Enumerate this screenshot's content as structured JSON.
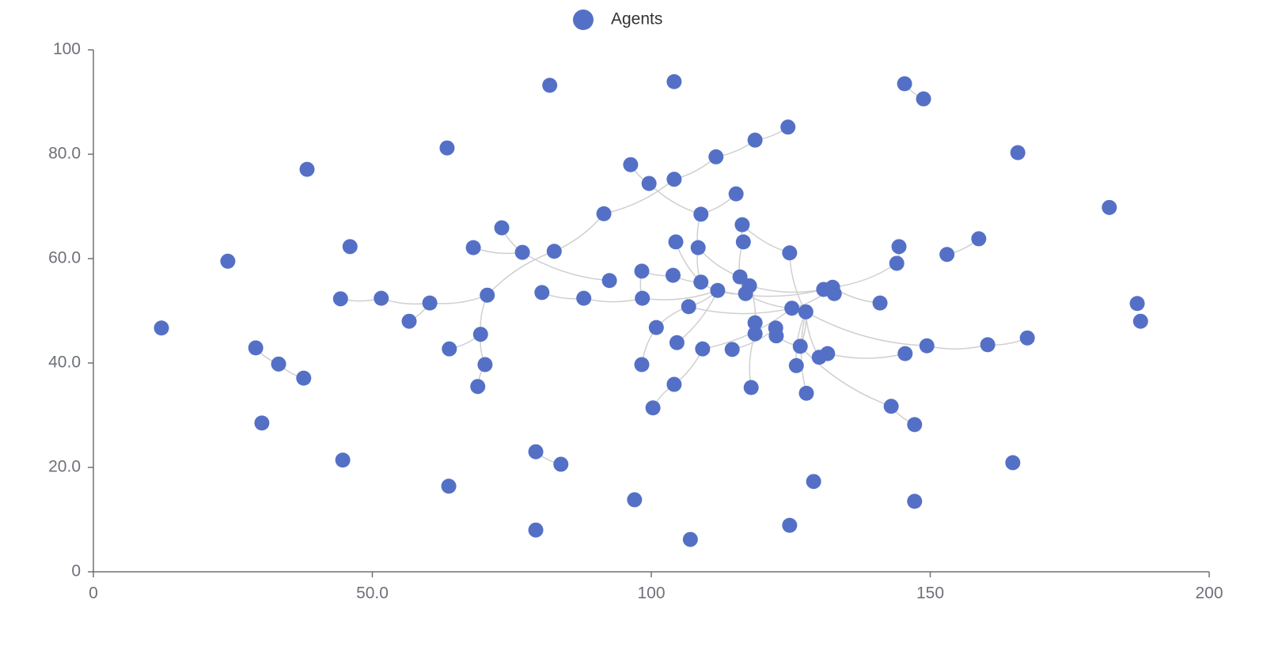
{
  "chart_data": {
    "type": "scatter",
    "series": [
      {
        "name": "Agents",
        "color": "#5470c6",
        "x": [
          12.2,
          24.1,
          29.1,
          33.2,
          37.7,
          30.2,
          38.3,
          46.0,
          44.3,
          51.6,
          44.7,
          56.6,
          60.3,
          63.4,
          63.8,
          63.7,
          68.1,
          70.6,
          69.4,
          70.2,
          68.9,
          73.2,
          76.9,
          82.6,
          81.8,
          80.4,
          79.3,
          83.8,
          79.3,
          87.9,
          91.5,
          92.5,
          96.3,
          99.6,
          98.3,
          98.4,
          98.3,
          100.9,
          100.3,
          97.0,
          104.1,
          104.1,
          104.4,
          103.9,
          106.7,
          104.6,
          104.1,
          107.0,
          108.9,
          108.4,
          108.9,
          109.2,
          111.6,
          111.9,
          115.2,
          116.3,
          116.5,
          115.9,
          117.6,
          116.9,
          114.5,
          118.6,
          118.6,
          118.6,
          117.9,
          124.5,
          124.8,
          125.2,
          122.3,
          122.4,
          126.7,
          127.7,
          126.0,
          127.8,
          124.8,
          129.1,
          130.9,
          132.5,
          132.8,
          130.1,
          131.6,
          141.0,
          144.0,
          144.4,
          145.5,
          143.0,
          147.2,
          147.2,
          145.4,
          148.8,
          149.4,
          153.0,
          158.7,
          160.3,
          165.7,
          164.8,
          167.4,
          182.1,
          187.1,
          187.7
        ],
        "y": [
          46.7,
          59.5,
          42.9,
          39.8,
          37.1,
          28.5,
          77.1,
          62.3,
          52.3,
          52.4,
          21.4,
          48.0,
          51.5,
          81.2,
          42.7,
          16.4,
          62.1,
          53.0,
          45.5,
          39.7,
          35.5,
          65.9,
          61.2,
          61.4,
          93.2,
          53.5,
          23.0,
          20.6,
          8.0,
          52.4,
          68.6,
          55.8,
          78.0,
          74.4,
          57.6,
          52.4,
          39.7,
          46.8,
          31.4,
          13.8,
          93.9,
          75.2,
          63.2,
          56.8,
          50.8,
          43.9,
          35.9,
          6.2,
          68.5,
          62.1,
          55.5,
          42.7,
          79.5,
          53.9,
          72.4,
          66.5,
          63.2,
          56.5,
          54.8,
          53.3,
          42.6,
          82.7,
          47.7,
          45.6,
          35.3,
          85.2,
          61.1,
          50.5,
          46.7,
          45.2,
          43.2,
          49.8,
          39.5,
          34.2,
          8.9,
          17.3,
          54.1,
          54.5,
          53.3,
          41.1,
          41.8,
          51.5,
          59.1,
          62.3,
          41.8,
          31.7,
          28.2,
          13.5,
          93.5,
          90.6,
          43.3,
          60.8,
          63.8,
          43.5,
          80.3,
          20.9,
          44.8,
          69.8,
          51.4,
          48.0
        ]
      }
    ],
    "links": [
      [
        2,
        3
      ],
      [
        3,
        4
      ],
      [
        8,
        9
      ],
      [
        9,
        12
      ],
      [
        11,
        12
      ],
      [
        12,
        17
      ],
      [
        17,
        18
      ],
      [
        18,
        19
      ],
      [
        19,
        20
      ],
      [
        14,
        18
      ],
      [
        16,
        22
      ],
      [
        21,
        22
      ],
      [
        22,
        31
      ],
      [
        23,
        17
      ],
      [
        23,
        30
      ],
      [
        30,
        41
      ],
      [
        41,
        52
      ],
      [
        52,
        61
      ],
      [
        61,
        65
      ],
      [
        25,
        29
      ],
      [
        29,
        35
      ],
      [
        35,
        53
      ],
      [
        32,
        33
      ],
      [
        33,
        48
      ],
      [
        48,
        54
      ],
      [
        48,
        49
      ],
      [
        49,
        50
      ],
      [
        49,
        57
      ],
      [
        55,
        56
      ],
      [
        56,
        57
      ],
      [
        55,
        66
      ],
      [
        66,
        71
      ],
      [
        34,
        35
      ],
      [
        34,
        43
      ],
      [
        43,
        50
      ],
      [
        50,
        53
      ],
      [
        53,
        59
      ],
      [
        57,
        59
      ],
      [
        59,
        67
      ],
      [
        58,
        76
      ],
      [
        53,
        76
      ],
      [
        44,
        53
      ],
      [
        44,
        37
      ],
      [
        37,
        36
      ],
      [
        44,
        67
      ],
      [
        45,
        53
      ],
      [
        46,
        38
      ],
      [
        46,
        51
      ],
      [
        51,
        67
      ],
      [
        60,
        68
      ],
      [
        62,
        63
      ],
      [
        63,
        64
      ],
      [
        62,
        58
      ],
      [
        68,
        69
      ],
      [
        69,
        70
      ],
      [
        70,
        71
      ],
      [
        71,
        72
      ],
      [
        71,
        73
      ],
      [
        71,
        79
      ],
      [
        79,
        80
      ],
      [
        67,
        77
      ],
      [
        77,
        82
      ],
      [
        82,
        83
      ],
      [
        77,
        81
      ],
      [
        91,
        92
      ],
      [
        80,
        84
      ],
      [
        85,
        86
      ],
      [
        71,
        90
      ],
      [
        90,
        93
      ],
      [
        93,
        96
      ],
      [
        88,
        89
      ],
      [
        70,
        85
      ],
      [
        26,
        27
      ],
      [
        42,
        50
      ]
    ],
    "xlim": [
      0,
      200
    ],
    "xticks": [
      0,
      {
        "value": 50,
        "label": "50.0"
      },
      100,
      150,
      200
    ],
    "ylim": [
      0,
      100
    ],
    "yticks": [
      0,
      {
        "value": 20,
        "label": "20.0"
      },
      {
        "value": 40,
        "label": "40.0"
      },
      {
        "value": 60,
        "label": "60.0"
      },
      {
        "value": 80,
        "label": "80.0"
      },
      100
    ]
  }
}
